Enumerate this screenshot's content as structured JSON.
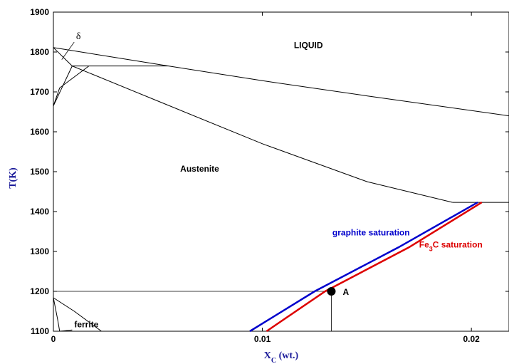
{
  "chart_data": {
    "type": "line",
    "title": "",
    "xlabel": "X",
    "xlabel_sub": "C",
    "xlabel_suffix": " (wt.)",
    "ylabel": "T(K)",
    "xlim": [
      0,
      0.0218
    ],
    "ylim": [
      1100,
      1900
    ],
    "x_ticks": [
      0,
      0.01,
      0.02
    ],
    "x_tick_labels": [
      "0",
      "0.01",
      "0.02"
    ],
    "y_ticks": [
      1100,
      1200,
      1300,
      1400,
      1500,
      1600,
      1700,
      1800,
      1900
    ],
    "y_tick_labels": [
      "1100",
      "1200",
      "1300",
      "1400",
      "1500",
      "1600",
      "1700",
      "1800",
      "1900"
    ],
    "grid": false,
    "colors": {
      "boundary": "#000000",
      "graphite": "#0000cc",
      "fe3c": "#dd0000",
      "axis_title": "#1a1a99"
    },
    "boundaries": [
      {
        "id": "liquidus",
        "points": [
          [
            0,
            1811
          ],
          [
            0.0055,
            1765
          ],
          [
            0.01,
            1728
          ],
          [
            0.015,
            1690
          ],
          [
            0.0218,
            1640
          ]
        ]
      },
      {
        "id": "solidus",
        "points": [
          [
            0.0009,
            1765
          ],
          [
            0.005,
            1677
          ],
          [
            0.01,
            1570
          ],
          [
            0.015,
            1475
          ],
          [
            0.0191,
            1423
          ]
        ]
      },
      {
        "id": "delta-liquid",
        "points": [
          [
            0,
            1811
          ],
          [
            0.0009,
            1765
          ]
        ]
      },
      {
        "id": "delta-austenite",
        "points": [
          [
            0,
            1665
          ],
          [
            0.0009,
            1765
          ]
        ]
      },
      {
        "id": "austenite-delta",
        "points": [
          [
            0,
            1665
          ],
          [
            0.0003,
            1710
          ],
          [
            0.0017,
            1765
          ]
        ]
      },
      {
        "id": "peritectic",
        "points": [
          [
            0.0009,
            1765
          ],
          [
            0.0055,
            1765
          ]
        ]
      },
      {
        "id": "eutectic",
        "points": [
          [
            0.0191,
            1423
          ],
          [
            0.0218,
            1423
          ]
        ]
      },
      {
        "id": "ferrite-austenite-1",
        "points": [
          [
            0,
            1184
          ],
          [
            0.001,
            1150
          ],
          [
            0.0023,
            1100
          ]
        ]
      },
      {
        "id": "ferrite-austenite-2",
        "points": [
          [
            0,
            1184
          ],
          [
            0.0002,
            1130
          ],
          [
            0.0003,
            1100
          ]
        ]
      },
      {
        "id": "ferrite-small",
        "points": [
          [
            0.0003,
            1100
          ],
          [
            0.0009,
            1103
          ]
        ]
      }
    ],
    "series": [
      {
        "name": "graphite saturation",
        "color": "#0000cc",
        "points": [
          [
            0.0094,
            1100
          ],
          [
            0.0125,
            1200
          ],
          [
            0.0165,
            1310
          ],
          [
            0.0203,
            1423
          ]
        ]
      },
      {
        "name": "Fe3C saturation",
        "color": "#dd0000",
        "points": [
          [
            0.0102,
            1100
          ],
          [
            0.013,
            1200
          ],
          [
            0.017,
            1310
          ],
          [
            0.0205,
            1423
          ]
        ]
      }
    ],
    "guide_lines": [
      {
        "id": "h-guide-1200",
        "points": [
          [
            0,
            1200
          ],
          [
            0.0133,
            1200
          ]
        ]
      },
      {
        "id": "v-guide-A",
        "points": [
          [
            0.0133,
            1100
          ],
          [
            0.0133,
            1200
          ]
        ]
      }
    ],
    "marker": {
      "label": "A",
      "x": 0.0133,
      "y": 1200
    },
    "labels": {
      "liquid": {
        "text": "LIQUID",
        "x": 0.0122,
        "y": 1810
      },
      "austenite": {
        "text": "Austenite",
        "x": 0.007,
        "y": 1500
      },
      "delta": {
        "text": "δ",
        "x": 0.0012,
        "y": 1832
      },
      "ferrite": {
        "text": "ferrite",
        "x": 0.001,
        "y": 1110
      },
      "graphite": {
        "text": "graphite saturation",
        "x": 0.0152,
        "y": 1340
      },
      "fe3c_main": "Fe",
      "fe3c_sub": "3",
      "fe3c_rest": "C saturation",
      "fe3c_pos": {
        "x": 0.0175,
        "y": 1310
      }
    }
  }
}
